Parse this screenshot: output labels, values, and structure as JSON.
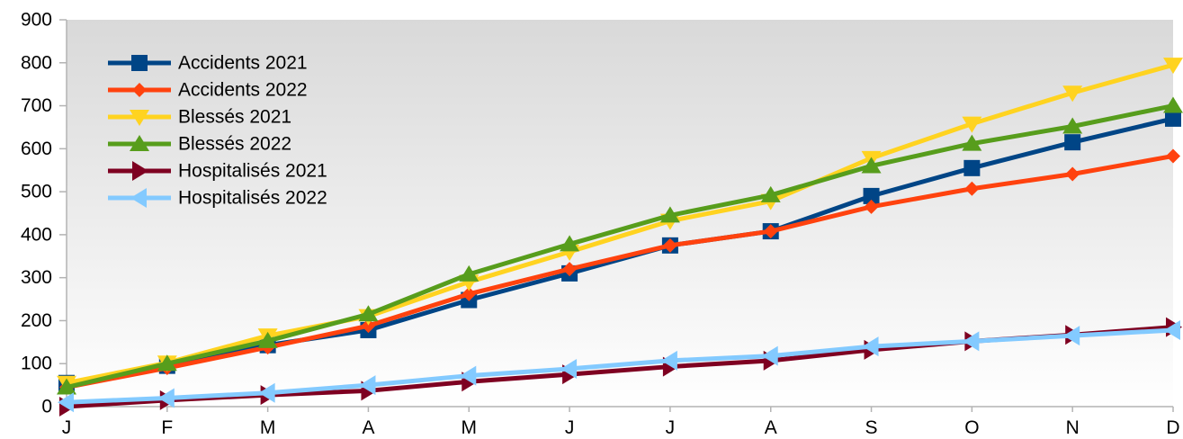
{
  "chart_data": {
    "type": "line",
    "title": "",
    "xlabel": "",
    "ylabel": "",
    "ylim": [
      0,
      900
    ],
    "yticks": [
      0,
      100,
      200,
      300,
      400,
      500,
      600,
      700,
      800,
      900
    ],
    "categories": [
      "J",
      "F",
      "M",
      "A",
      "M",
      "J",
      "J",
      "A",
      "S",
      "O",
      "N",
      "D"
    ],
    "legend_position": "top-left",
    "grid": false,
    "background": "vertical gradient grey to white",
    "series": [
      {
        "name": "Accidents 2021",
        "color": "#004586",
        "marker": "square",
        "values": [
          55,
          95,
          143,
          178,
          248,
          310,
          375,
          408,
          490,
          555,
          615,
          670
        ]
      },
      {
        "name": "Accidents 2022",
        "color": "#ff420e",
        "marker": "diamond",
        "values": [
          45,
          90,
          138,
          188,
          262,
          320,
          375,
          408,
          465,
          507,
          541,
          583
        ]
      },
      {
        "name": "Blessés 2021",
        "color": "#ffd320",
        "marker": "triangle-down",
        "values": [
          55,
          102,
          165,
          210,
          290,
          360,
          432,
          478,
          578,
          658,
          730,
          795
        ]
      },
      {
        "name": "Blessés 2022",
        "color": "#579d1c",
        "marker": "triangle-up",
        "values": [
          45,
          100,
          153,
          215,
          308,
          378,
          445,
          492,
          560,
          612,
          652,
          700
        ]
      },
      {
        "name": "Hospitalisés 2021",
        "color": "#7e0021",
        "marker": "triangle-right",
        "values": [
          0,
          15,
          27,
          37,
          58,
          75,
          93,
          107,
          132,
          152,
          167,
          185
        ]
      },
      {
        "name": "Hospitalisés 2022",
        "color": "#83caff",
        "marker": "triangle-left",
        "values": [
          10,
          20,
          32,
          50,
          72,
          88,
          107,
          118,
          140,
          152,
          165,
          178
        ]
      }
    ]
  }
}
